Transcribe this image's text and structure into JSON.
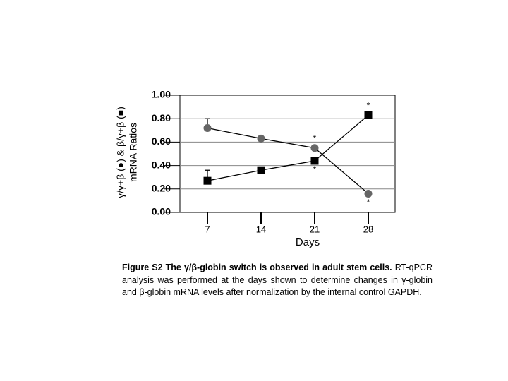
{
  "chart_data": {
    "type": "line",
    "xlabel": "Days",
    "ylabel": [
      "γ/γ+β (●) & β/γ+β (■)",
      "mRNA Ratios"
    ],
    "categories": [
      "7",
      "14",
      "21",
      "28"
    ],
    "series": [
      {
        "name": "γ/γ+β",
        "marker": "circle",
        "color": "#666666",
        "values": [
          0.72,
          0.63,
          0.55,
          0.16
        ],
        "errors": [
          0.08,
          null,
          null,
          null
        ],
        "annotations": [
          null,
          null,
          "*",
          "*"
        ]
      },
      {
        "name": "β/γ+β",
        "marker": "square",
        "color": "#000000",
        "values": [
          0.27,
          0.36,
          0.44,
          0.83
        ],
        "errors": [
          0.09,
          null,
          null,
          null
        ],
        "annotations": [
          null,
          null,
          "*",
          "*"
        ]
      }
    ],
    "ylim": [
      0,
      1
    ],
    "yticks": [
      {
        "value": 0,
        "label": "0.00"
      },
      {
        "value": 0.2,
        "label": "0.20"
      },
      {
        "value": 0.4,
        "label": "0.40"
      },
      {
        "value": 0.6,
        "label": "0.60"
      },
      {
        "value": 0.8,
        "label": "0.80"
      },
      {
        "value": 1,
        "label": "1.00"
      }
    ],
    "grid": true
  },
  "caption": {
    "title": "Figure S2 The γ/β-globin switch is observed in adult stem cells.",
    "text": "RT-qPCR analysis was performed at the days shown to determine changes in γ-globin and β-globin mRNA levels after normalization by the internal control GAPDH."
  }
}
